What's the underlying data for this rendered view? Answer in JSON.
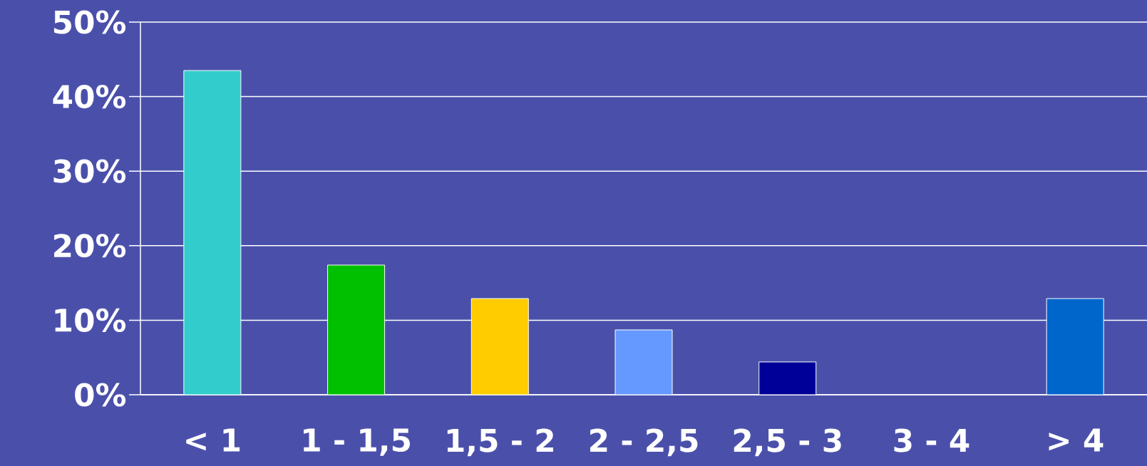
{
  "chart_data": {
    "type": "bar",
    "categories": [
      "< 1",
      "1 - 1,5",
      "1,5 - 2",
      "2 - 2,5",
      "2,5 - 3",
      "3 - 4",
      "> 4"
    ],
    "values": [
      43.5,
      17.4,
      12.9,
      8.7,
      4.4,
      0,
      12.9
    ],
    "colors": [
      "#33cccc",
      "#00c000",
      "#ffcc00",
      "#6699ff",
      "#000099",
      null,
      "#0066cc"
    ],
    "ylim": [
      0,
      50
    ],
    "yticks": [
      {
        "value": 0,
        "label": "0%"
      },
      {
        "value": 10,
        "label": "10%"
      },
      {
        "value": 20,
        "label": "20%"
      },
      {
        "value": 30,
        "label": "30%"
      },
      {
        "value": 40,
        "label": "40%"
      },
      {
        "value": 50,
        "label": "50%"
      }
    ],
    "grid": "y"
  }
}
